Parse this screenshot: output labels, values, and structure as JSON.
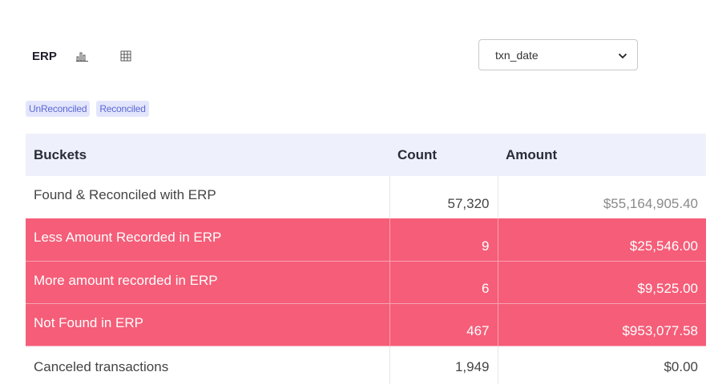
{
  "header": {
    "title": "ERP",
    "chart_icon": "bar-chart-icon",
    "table_icon": "grid-table-icon"
  },
  "date_select": {
    "value": "txn_date",
    "icon": "chevron-down-icon"
  },
  "tags": [
    {
      "label": "UnReconciled"
    },
    {
      "label": "Reconciled"
    }
  ],
  "table": {
    "headers": [
      "Buckets",
      "Count",
      "Amount"
    ],
    "rows": [
      {
        "bucket": "Found & Reconciled with ERP",
        "count": "57,320",
        "amount": "$55,164,905.40",
        "status": "ok"
      },
      {
        "bucket": "Less Amount Recorded in ERP",
        "count": "9",
        "amount": "$25,546.00",
        "status": "alert"
      },
      {
        "bucket": "More amount recorded in ERP",
        "count": "6",
        "amount": "$9,525.00",
        "status": "alert"
      },
      {
        "bucket": "Not Found in ERP",
        "count": "467",
        "amount": "$953,077.58",
        "status": "alert"
      },
      {
        "bucket": "Canceled transactions",
        "count": "1,949",
        "amount": "$0.00",
        "status": "ok"
      }
    ]
  },
  "colors": {
    "alert_row": "#f55d78",
    "header_row": "#eef1fb",
    "tag_bg": "#e3e6fb",
    "tag_text": "#5b67d6"
  }
}
